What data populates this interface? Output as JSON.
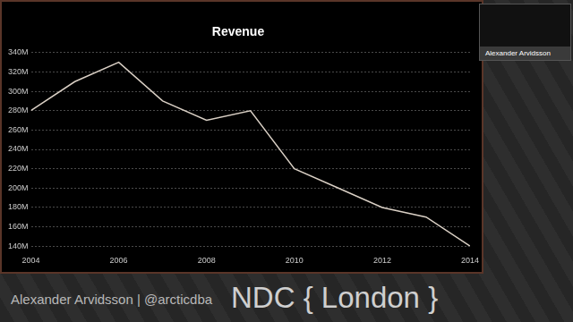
{
  "chart_data": {
    "type": "line",
    "title": "Revenue",
    "x": [
      2004,
      2005,
      2006,
      2007,
      2008,
      2009,
      2010,
      2011,
      2012,
      2013,
      2014
    ],
    "values": [
      280000000,
      310000000,
      330000000,
      290000000,
      270000000,
      280000000,
      220000000,
      200000000,
      180000000,
      170000000,
      140000000
    ],
    "color": "#d9cfc4",
    "xlim": [
      2004,
      2014
    ],
    "xticks": [
      2004,
      2006,
      2008,
      2010,
      2012,
      2014
    ],
    "ylim": [
      140000000,
      340000000
    ],
    "yticks": [
      {
        "value": 140000000,
        "label": "140M"
      },
      {
        "value": 160000000,
        "label": "160M"
      },
      {
        "value": 180000000,
        "label": "180M"
      },
      {
        "value": 200000000,
        "label": "200M"
      },
      {
        "value": 220000000,
        "label": "220M"
      },
      {
        "value": 240000000,
        "label": "240M"
      },
      {
        "value": 260000000,
        "label": "260M"
      },
      {
        "value": 280000000,
        "label": "280M"
      },
      {
        "value": 300000000,
        "label": "300M"
      },
      {
        "value": 320000000,
        "label": "320M"
      },
      {
        "value": 340000000,
        "label": "340M"
      }
    ],
    "grid": true
  },
  "page": {
    "speaker": "Alexander Arvidsson | @arcticdba",
    "event": "NDC { London }",
    "thumbnail_label": "Alexander Arvidsson"
  }
}
